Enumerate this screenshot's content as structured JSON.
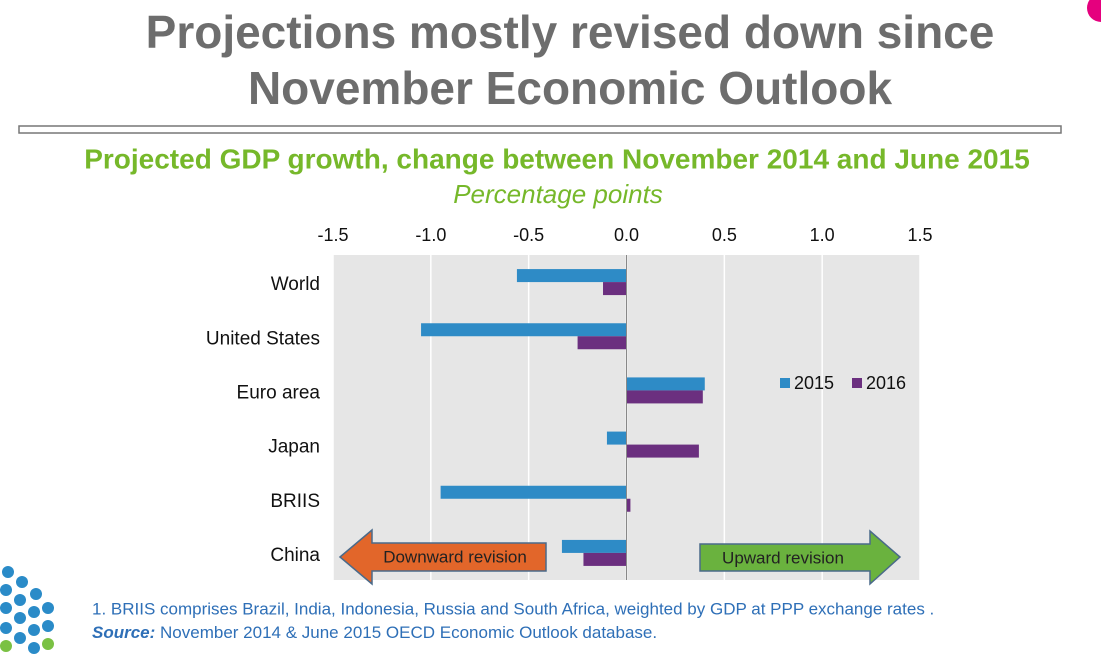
{
  "slide": {
    "title_lines": [
      "Projections mostly revised down since",
      "November Economic Outlook"
    ]
  },
  "chart_data": {
    "type": "hbar",
    "title": "Projected GDP growth, change between November 2014 and June 2015",
    "subtitle": "Percentage points",
    "categories": [
      "World",
      "United States",
      "Euro area",
      "Japan",
      "BRIIS",
      "China"
    ],
    "series": [
      {
        "name": "2015",
        "color": "#2e8bc6",
        "values": [
          -0.56,
          -1.05,
          0.4,
          -0.1,
          -0.95,
          -0.33
        ]
      },
      {
        "name": "2016",
        "color": "#6b2f7f",
        "values": [
          -0.12,
          -0.25,
          0.39,
          0.37,
          0.02,
          -0.22
        ]
      }
    ],
    "xlim": [
      -1.5,
      1.5
    ],
    "xticks": [
      -1.5,
      {
        "value": -1,
        "label": "-1.0"
      },
      -0.5,
      {
        "value": 0,
        "label": "0.0"
      },
      0.5,
      {
        "value": 1,
        "label": "1.0"
      },
      1.5
    ],
    "grid": true,
    "annotations": [
      {
        "text": "Downward revision",
        "color": "#e2662a"
      },
      {
        "text": "Upward revision",
        "color": "#6ab23e"
      }
    ],
    "note": "1. BRIIS comprises Brazil, India, Indonesia, Russia and South Africa, weighted by GDP at PPP exchange rates .",
    "source_label": "Source:",
    "source": "November 2014 & June 2015 OECD Economic Outlook database."
  }
}
